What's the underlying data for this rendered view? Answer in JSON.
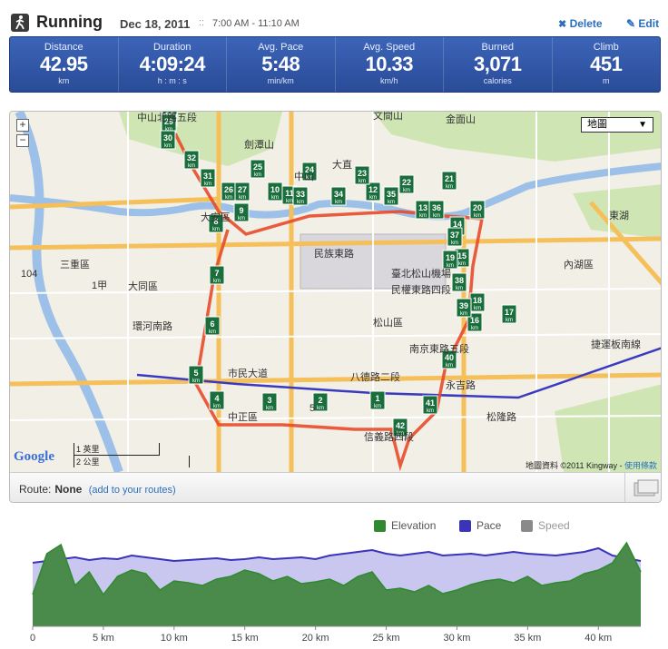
{
  "header": {
    "title": "Running",
    "date": "Dec 18, 2011",
    "sep": "::",
    "time_range": "7:00 AM - 11:10 AM",
    "delete_label": "Delete",
    "edit_label": "Edit"
  },
  "stats": [
    {
      "label": "Distance",
      "value": "42.95",
      "unit": "km"
    },
    {
      "label": "Duration",
      "value": "4:09:24",
      "unit": "h : m : s"
    },
    {
      "label": "Avg. Pace",
      "value": "5:48",
      "unit": "min/km"
    },
    {
      "label": "Avg. Speed",
      "value": "10.33",
      "unit": "km/h"
    },
    {
      "label": "Burned",
      "value": "3,071",
      "unit": "calories"
    },
    {
      "label": "Climb",
      "value": "451",
      "unit": "m"
    }
  ],
  "map": {
    "map_type": "地圖",
    "zoom_in": "+",
    "zoom_out": "−",
    "google": "Google",
    "scale_mi": "1 英里",
    "scale_km": "2 公里",
    "copyright": "地圖資料 ©2011 Kingway - ",
    "terms": "使用條款",
    "labels": [
      "劍潭山",
      "中山",
      "大直",
      "臺北松山機場",
      "松山區",
      "內湖區",
      "大同區",
      "三重區",
      "中正區",
      "大安區",
      "文間山",
      "金面山",
      "民族東路",
      "民權東路四段",
      "南京東路五段",
      "八德路二段",
      "市民大道",
      "信義路四段",
      "永吉路",
      "松隆路",
      "環河南路",
      "捷運板南線",
      "東湖",
      "中山北路五段",
      "104",
      "1甲",
      "5"
    ],
    "markers": [
      "1",
      "2",
      "3",
      "4",
      "5",
      "6",
      "7",
      "8",
      "9",
      "10",
      "11",
      "12",
      "13",
      "14",
      "15",
      "16",
      "17",
      "18",
      "19",
      "20",
      "21",
      "22",
      "23",
      "24",
      "25",
      "26",
      "27",
      "28",
      "29",
      "30",
      "31",
      "32",
      "33",
      "34",
      "35",
      "36",
      "37",
      "38",
      "39",
      "40",
      "41",
      "42"
    ],
    "marker_unit": "km"
  },
  "route": {
    "label": "Route:",
    "value": "None",
    "link": "(add to your routes)"
  },
  "legend": [
    {
      "label": "Elevation",
      "color": "#2f8a2f"
    },
    {
      "label": "Pace",
      "color": "#3a34b8"
    },
    {
      "label": "Speed",
      "color": "#8a8a8a"
    }
  ],
  "chart_data": {
    "type": "area",
    "x_ticks": [
      "0",
      "5 km",
      "10 km",
      "15 km",
      "20 km",
      "25 km",
      "30 km",
      "35 km",
      "40 km"
    ],
    "xlim": [
      0,
      43
    ],
    "series": [
      {
        "name": "Elevation",
        "values": [
          35,
          80,
          90,
          45,
          60,
          35,
          55,
          62,
          58,
          40,
          50,
          48,
          45,
          52,
          55,
          62,
          58,
          50,
          55,
          47,
          49,
          52,
          45,
          55,
          60,
          40,
          42,
          38,
          45,
          36,
          40,
          46,
          50,
          52,
          48,
          55,
          45,
          48,
          50,
          58,
          62,
          70,
          92,
          60
        ]
      },
      {
        "name": "Pace",
        "values": [
          70,
          72,
          74,
          76,
          73,
          75,
          74,
          78,
          76,
          74,
          72,
          73,
          74,
          75,
          73,
          74,
          76,
          74,
          75,
          76,
          74,
          78,
          80,
          82,
          84,
          80,
          78,
          80,
          82,
          78,
          79,
          80,
          78,
          80,
          82,
          80,
          79,
          78,
          80,
          82,
          86,
          78,
          75,
          72
        ]
      }
    ]
  }
}
